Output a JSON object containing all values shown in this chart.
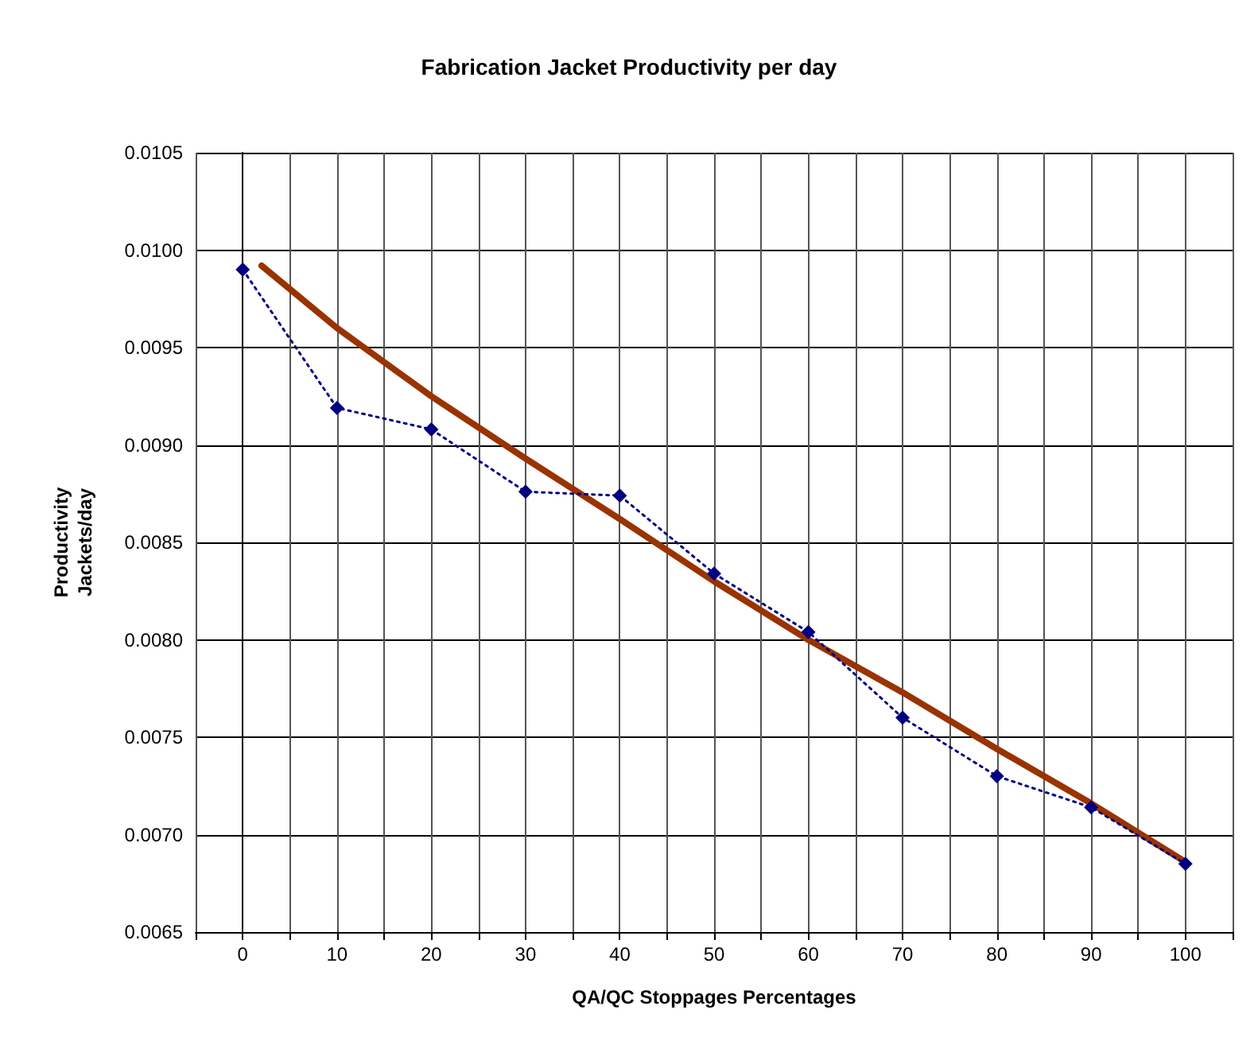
{
  "chart_data": {
    "type": "line",
    "title": "Fabrication Jacket Productivity per day",
    "xlabel": "QA/QC Stoppages Percentages",
    "ylabel": "Productivity\nJackets/day",
    "x": [
      0,
      10,
      20,
      30,
      40,
      50,
      60,
      70,
      80,
      90,
      100
    ],
    "series": [
      {
        "color": "#000080",
        "marker": "diamond",
        "line_style": "dotted",
        "values": [
          0.0099,
          0.00919,
          0.00908,
          0.00876,
          0.00874,
          0.00834,
          0.00804,
          0.0076,
          0.0073,
          0.00714,
          0.00685
        ]
      },
      {
        "color": "#993300",
        "marker": "none",
        "line_style": "solid",
        "x": [
          2,
          10,
          20,
          30,
          40,
          50,
          60,
          70,
          80,
          90,
          100
        ],
        "values": [
          0.00992,
          0.0096,
          0.00925,
          0.00893,
          0.00862,
          0.0083,
          0.008,
          0.00773,
          0.00744,
          0.00716,
          0.00686
        ]
      }
    ],
    "xlim": [
      -5,
      105
    ],
    "xticks": [
      {
        "value": -5,
        "label": null
      },
      0,
      {
        "value": 5,
        "label": null
      },
      10,
      {
        "value": 15,
        "label": null
      },
      20,
      {
        "value": 25,
        "label": null
      },
      30,
      {
        "value": 35,
        "label": null
      },
      40,
      {
        "value": 45,
        "label": null
      },
      50,
      {
        "value": 55,
        "label": null
      },
      60,
      {
        "value": 65,
        "label": null
      },
      70,
      {
        "value": 75,
        "label": null
      },
      80,
      {
        "value": 85,
        "label": null
      },
      90,
      {
        "value": 95,
        "label": null
      },
      100,
      {
        "value": 105,
        "label": null
      }
    ],
    "ylim": [
      0.0065,
      0.0105
    ],
    "yticks": [
      {
        "value": 0.0065,
        "label": "0.0065"
      },
      {
        "value": 0.007,
        "label": "0.0070"
      },
      {
        "value": 0.0075,
        "label": "0.0075"
      },
      {
        "value": 0.008,
        "label": "0.0080"
      },
      {
        "value": 0.0085,
        "label": "0.0085"
      },
      {
        "value": 0.009,
        "label": "0.0090"
      },
      {
        "value": 0.0095,
        "label": "0.0095"
      },
      {
        "value": 0.01,
        "label": "0.0100"
      },
      {
        "value": 0.0105,
        "label": "0.0105"
      }
    ],
    "grid": true
  }
}
